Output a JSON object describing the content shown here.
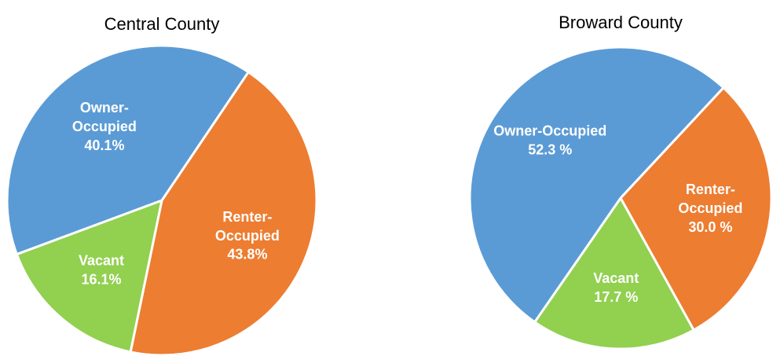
{
  "chart_data": [
    {
      "type": "pie",
      "title": "Central County",
      "categories": [
        "Renter-Occupied",
        "Vacant",
        "Owner-Occupied"
      ],
      "values": [
        43.8,
        16.1,
        40.1
      ],
      "value_labels": [
        "43.8%",
        "16.1%",
        "40.1%"
      ],
      "colors": [
        "#ed7d31",
        "#92d050",
        "#5b9bd5"
      ],
      "startangle": 34
    },
    {
      "type": "pie",
      "title": "Broward County",
      "categories": [
        "Renter-Occupied",
        "Vacant",
        "Owner-Occupied"
      ],
      "values": [
        30.0,
        17.7,
        52.3
      ],
      "value_labels": [
        "30.0 %",
        "17.7 %",
        "52.3 %"
      ],
      "colors": [
        "#ed7d31",
        "#92d050",
        "#5b9bd5"
      ],
      "startangle": 43
    }
  ]
}
